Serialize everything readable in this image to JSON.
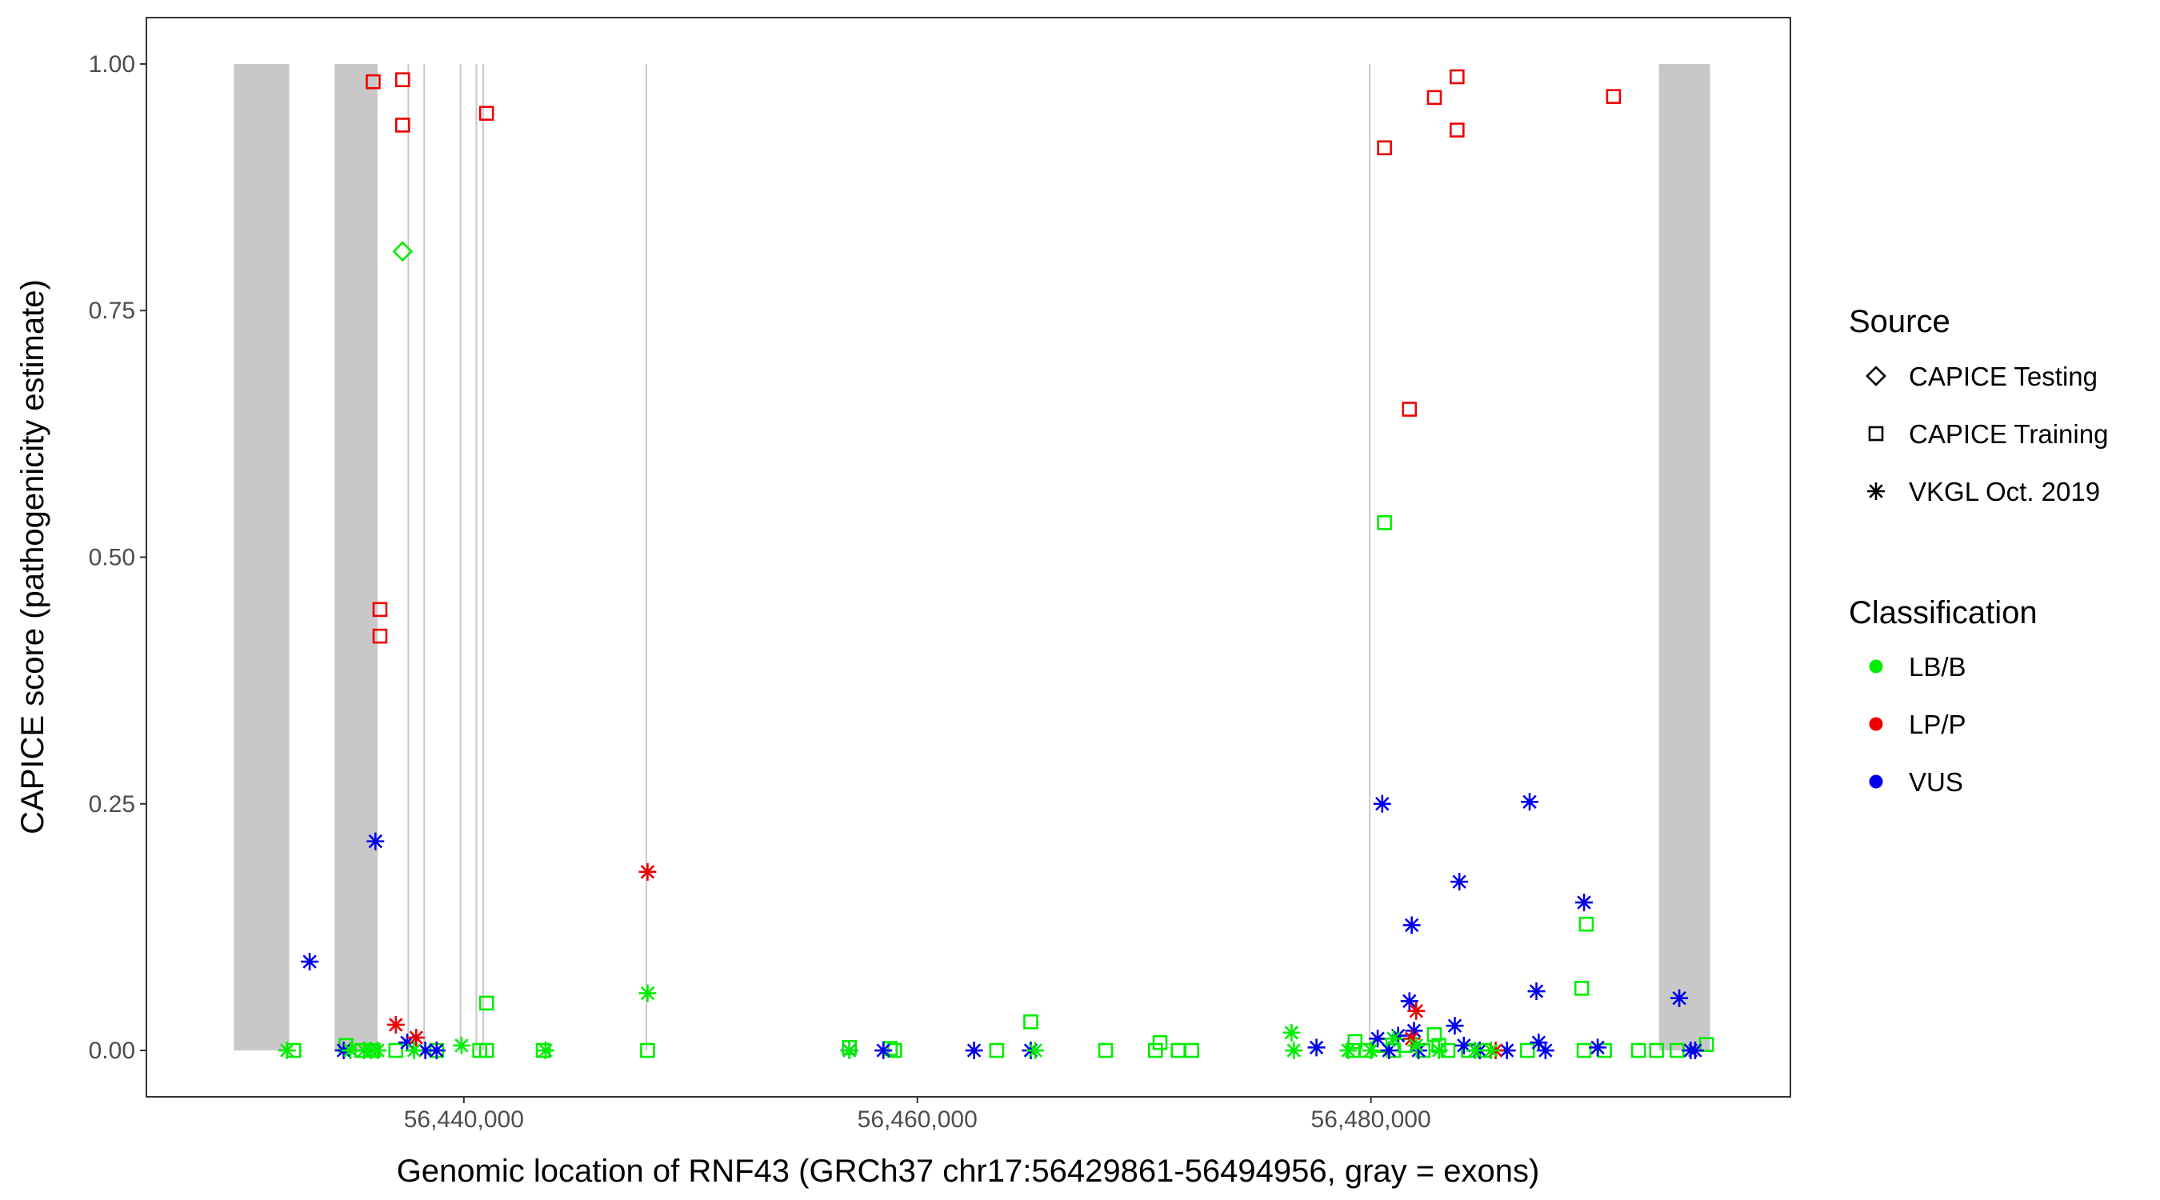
{
  "chart_data": {
    "type": "scatter",
    "xlabel": "Genomic location of RNF43 (GRCh37 chr17:56429861-56494956, gray = exons)",
    "ylabel": "CAPICE score (pathogenicity estimate)",
    "xlim": [
      56426000,
      56498500
    ],
    "ylim": [
      -0.047,
      1.047
    ],
    "x_ticks": [
      56440000,
      56460000,
      56480000
    ],
    "x_tick_labels": [
      "56,440,000",
      "56,460,000",
      "56,480,000"
    ],
    "y_ticks": [
      0,
      0.25,
      0.5,
      0.75,
      1
    ],
    "y_tick_labels": [
      "0.00",
      "0.25",
      "0.50",
      "0.75",
      "1.00"
    ],
    "grid": false,
    "exons": [
      [
        56429861,
        56432300
      ],
      [
        56434300,
        56436200
      ],
      [
        56437500,
        56437600
      ],
      [
        56438200,
        56438300
      ],
      [
        56439800,
        56439900
      ],
      [
        56440500,
        56440600
      ],
      [
        56440800,
        56440900
      ],
      [
        56448000,
        56448100
      ],
      [
        56479900,
        56480000
      ],
      [
        56492700,
        56494956
      ]
    ],
    "legend": {
      "position": "right",
      "source_title": "Source",
      "source_items": [
        {
          "label": "CAPICE Testing",
          "shape": "diamond"
        },
        {
          "label": "CAPICE Training",
          "shape": "square"
        },
        {
          "label": "VKGL Oct. 2019",
          "shape": "asterisk"
        }
      ],
      "class_title": "Classification",
      "class_items": [
        {
          "label": "LB/B",
          "color": "#00ee00"
        },
        {
          "label": "LP/P",
          "color": "#ee0000"
        },
        {
          "label": "VUS",
          "color": "#0000ee"
        }
      ]
    },
    "series": [
      {
        "source": "CAPICE Testing",
        "class": "LB/B",
        "shape": "diamond",
        "color": "#00ee00",
        "points": [
          [
            56437300,
            0.81
          ]
        ]
      },
      {
        "source": "CAPICE Training",
        "class": "LP/P",
        "shape": "square",
        "color": "#ee0000",
        "points": [
          [
            56436000,
            0.982
          ],
          [
            56437300,
            0.984
          ],
          [
            56437300,
            0.938
          ],
          [
            56441000,
            0.95
          ],
          [
            56436300,
            0.447
          ],
          [
            56436300,
            0.42
          ],
          [
            56480600,
            0.915
          ],
          [
            56482800,
            0.966
          ],
          [
            56483800,
            0.987
          ],
          [
            56483800,
            0.933
          ],
          [
            56490700,
            0.967
          ],
          [
            56481700,
            0.65
          ]
        ]
      },
      {
        "source": "CAPICE Training",
        "class": "LB/B",
        "shape": "square",
        "color": "#00ee00",
        "points": [
          [
            56432500,
            0.0
          ],
          [
            56434800,
            0.005
          ],
          [
            56435500,
            0.0
          ],
          [
            56436000,
            0.0
          ],
          [
            56437000,
            0.0
          ],
          [
            56438800,
            0.0
          ],
          [
            56440700,
            0.0
          ],
          [
            56441000,
            0.0
          ],
          [
            56441000,
            0.048
          ],
          [
            56443500,
            0.0
          ],
          [
            56448100,
            0.0
          ],
          [
            56457000,
            0.003
          ],
          [
            56458800,
            0.002
          ],
          [
            56459000,
            0.0
          ],
          [
            56463500,
            0.0
          ],
          [
            56465000,
            0.029
          ],
          [
            56468300,
            0.0
          ],
          [
            56470500,
            0.0
          ],
          [
            56470700,
            0.008
          ],
          [
            56471500,
            0.0
          ],
          [
            56472100,
            0.0
          ],
          [
            56479200,
            0.0
          ],
          [
            56479300,
            0.009
          ],
          [
            56479800,
            0.0
          ],
          [
            56480400,
            0.005
          ],
          [
            56480600,
            0.535
          ],
          [
            56481000,
            0.0
          ],
          [
            56481500,
            0.005
          ],
          [
            56482300,
            0.0
          ],
          [
            56482800,
            0.016
          ],
          [
            56483000,
            0.005
          ],
          [
            56483400,
            0.0
          ],
          [
            56484300,
            0.0
          ],
          [
            56485000,
            0.0
          ],
          [
            56486900,
            0.0
          ],
          [
            56489300,
            0.063
          ],
          [
            56489500,
            0.128
          ],
          [
            56489400,
            0.0
          ],
          [
            56490300,
            0.0
          ],
          [
            56491800,
            0.0
          ],
          [
            56492600,
            0.0
          ],
          [
            56493500,
            0.0
          ],
          [
            56494800,
            0.006
          ]
        ]
      },
      {
        "source": "VKGL Oct. 2019",
        "class": "VUS",
        "shape": "asterisk",
        "color": "#0000ee",
        "points": [
          [
            56433200,
            0.09
          ],
          [
            56434700,
            0.0
          ],
          [
            56436100,
            0.212
          ],
          [
            56437500,
            0.008
          ],
          [
            56438300,
            0.0
          ],
          [
            56438800,
            0.0
          ],
          [
            56457000,
            0.0
          ],
          [
            56458500,
            0.0
          ],
          [
            56462500,
            0.0
          ],
          [
            56465000,
            0.0
          ],
          [
            56477600,
            0.003
          ],
          [
            56480300,
            0.012
          ],
          [
            56480500,
            0.25
          ],
          [
            56480800,
            0.0
          ],
          [
            56481200,
            0.015
          ],
          [
            56481700,
            0.05
          ],
          [
            56481800,
            0.127
          ],
          [
            56481900,
            0.02
          ],
          [
            56482100,
            0.0
          ],
          [
            56483700,
            0.025
          ],
          [
            56483900,
            0.171
          ],
          [
            56484100,
            0.005
          ],
          [
            56484800,
            0.0
          ],
          [
            56486000,
            0.0
          ],
          [
            56487000,
            0.252
          ],
          [
            56487300,
            0.06
          ],
          [
            56487400,
            0.008
          ],
          [
            56487700,
            0.0
          ],
          [
            56489400,
            0.15
          ],
          [
            56490000,
            0.003
          ],
          [
            56493600,
            0.053
          ],
          [
            56494100,
            0.0
          ],
          [
            56494300,
            0.0
          ]
        ]
      },
      {
        "source": "VKGL Oct. 2019",
        "class": "LP/P",
        "shape": "asterisk",
        "color": "#ee0000",
        "points": [
          [
            56437000,
            0.026
          ],
          [
            56437900,
            0.013
          ],
          [
            56448100,
            0.181
          ],
          [
            56481800,
            0.012
          ],
          [
            56482000,
            0.04
          ],
          [
            56485500,
            0.0
          ]
        ]
      },
      {
        "source": "VKGL Oct. 2019",
        "class": "LB/B",
        "shape": "asterisk",
        "color": "#00ee00",
        "points": [
          [
            56432200,
            0.0
          ],
          [
            56435000,
            0.0
          ],
          [
            56435600,
            0.0
          ],
          [
            56435900,
            0.0
          ],
          [
            56436200,
            0.0
          ],
          [
            56437800,
            0.0
          ],
          [
            56439900,
            0.005
          ],
          [
            56443600,
            0.0
          ],
          [
            56448100,
            0.058
          ],
          [
            56457000,
            0.0
          ],
          [
            56465200,
            0.0
          ],
          [
            56476500,
            0.018
          ],
          [
            56476600,
            0.0
          ],
          [
            56479000,
            0.0
          ],
          [
            56480000,
            0.0
          ],
          [
            56481000,
            0.012
          ],
          [
            56482000,
            0.005
          ],
          [
            56483000,
            0.0
          ],
          [
            56484600,
            0.0
          ],
          [
            56485300,
            0.0
          ]
        ]
      }
    ]
  }
}
